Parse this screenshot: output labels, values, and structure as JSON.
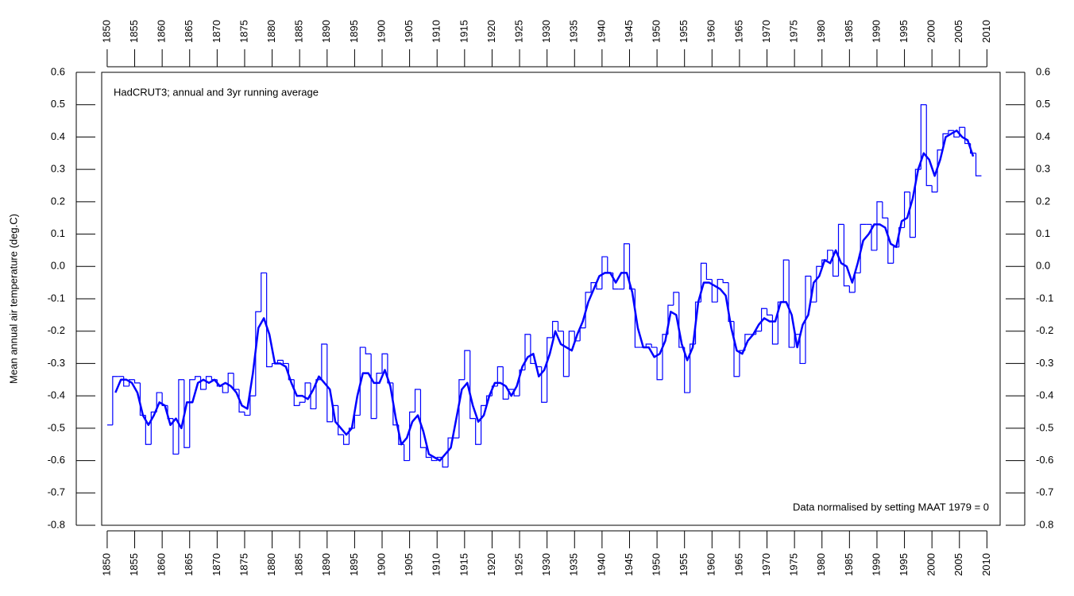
{
  "chart_data": {
    "type": "line",
    "title": "HadCRUT3; annual and 3yr running average",
    "annotation": "Data normalised by setting MAAT 1979 = 0",
    "y_label": "Mean annual air temperature (deg.C)",
    "x": [
      1850,
      1851,
      1852,
      1853,
      1854,
      1855,
      1856,
      1857,
      1858,
      1859,
      1860,
      1861,
      1862,
      1863,
      1864,
      1865,
      1866,
      1867,
      1868,
      1869,
      1870,
      1871,
      1872,
      1873,
      1874,
      1875,
      1876,
      1877,
      1878,
      1879,
      1880,
      1881,
      1882,
      1883,
      1884,
      1885,
      1886,
      1887,
      1888,
      1889,
      1890,
      1891,
      1892,
      1893,
      1894,
      1895,
      1896,
      1897,
      1898,
      1899,
      1900,
      1901,
      1902,
      1903,
      1904,
      1905,
      1906,
      1907,
      1908,
      1909,
      1910,
      1911,
      1912,
      1913,
      1914,
      1915,
      1916,
      1917,
      1918,
      1919,
      1920,
      1921,
      1922,
      1923,
      1924,
      1925,
      1926,
      1927,
      1928,
      1929,
      1930,
      1931,
      1932,
      1933,
      1934,
      1935,
      1936,
      1937,
      1938,
      1939,
      1940,
      1941,
      1942,
      1943,
      1944,
      1945,
      1946,
      1947,
      1948,
      1949,
      1950,
      1951,
      1952,
      1953,
      1954,
      1955,
      1956,
      1957,
      1958,
      1959,
      1960,
      1961,
      1962,
      1963,
      1964,
      1965,
      1966,
      1967,
      1968,
      1969,
      1970,
      1971,
      1972,
      1973,
      1974,
      1975,
      1976,
      1977,
      1978,
      1979,
      1980,
      1981,
      1982,
      1983,
      1984,
      1985,
      1986,
      1987,
      1988,
      1989,
      1990,
      1991,
      1992,
      1993,
      1994,
      1995,
      1996,
      1997,
      1998,
      1999,
      2000,
      2001,
      2002,
      2003,
      2004,
      2005,
      2006,
      2007,
      2008
    ],
    "series": [
      {
        "color": "#0000ff",
        "step": true,
        "values": [
          -0.49,
          -0.34,
          -0.34,
          -0.37,
          -0.35,
          -0.36,
          -0.46,
          -0.55,
          -0.45,
          -0.39,
          -0.43,
          -0.47,
          -0.58,
          -0.35,
          -0.56,
          -0.35,
          -0.34,
          -0.38,
          -0.34,
          -0.35,
          -0.37,
          -0.39,
          -0.33,
          -0.38,
          -0.45,
          -0.46,
          -0.4,
          -0.14,
          -0.02,
          -0.31,
          -0.3,
          -0.29,
          -0.3,
          -0.35,
          -0.43,
          -0.42,
          -0.36,
          -0.44,
          -0.35,
          -0.24,
          -0.48,
          -0.43,
          -0.52,
          -0.55,
          -0.5,
          -0.46,
          -0.25,
          -0.27,
          -0.47,
          -0.33,
          -0.27,
          -0.36,
          -0.49,
          -0.55,
          -0.6,
          -0.45,
          -0.38,
          -0.56,
          -0.59,
          -0.6,
          -0.59,
          -0.62,
          -0.53,
          -0.53,
          -0.35,
          -0.26,
          -0.47,
          -0.55,
          -0.43,
          -0.4,
          -0.37,
          -0.31,
          -0.41,
          -0.38,
          -0.4,
          -0.32,
          -0.21,
          -0.3,
          -0.31,
          -0.42,
          -0.22,
          -0.17,
          -0.2,
          -0.34,
          -0.2,
          -0.23,
          -0.19,
          -0.08,
          -0.05,
          -0.07,
          0.03,
          -0.02,
          -0.07,
          -0.07,
          0.07,
          -0.07,
          -0.25,
          -0.25,
          -0.24,
          -0.25,
          -0.35,
          -0.21,
          -0.12,
          -0.08,
          -0.25,
          -0.39,
          -0.24,
          -0.11,
          0.01,
          -0.04,
          -0.11,
          -0.04,
          -0.05,
          -0.17,
          -0.34,
          -0.26,
          -0.21,
          -0.21,
          -0.2,
          -0.13,
          -0.15,
          -0.24,
          -0.11,
          0.02,
          -0.25,
          -0.21,
          -0.3,
          -0.03,
          -0.11,
          0.0,
          0.02,
          0.05,
          -0.03,
          0.13,
          -0.06,
          -0.08,
          -0.02,
          0.13,
          0.13,
          0.05,
          0.2,
          0.15,
          0.01,
          0.06,
          0.12,
          0.23,
          0.09,
          0.3,
          0.5,
          0.25,
          0.23,
          0.36,
          0.41,
          0.42,
          0.4,
          0.43,
          0.38,
          0.35,
          0.28
        ]
      },
      {
        "color": "#0000ff",
        "step": false,
        "values": [
          null,
          -0.39,
          -0.35,
          -0.35,
          -0.36,
          -0.39,
          -0.46,
          -0.49,
          -0.46,
          -0.42,
          -0.43,
          -0.49,
          -0.47,
          -0.5,
          -0.42,
          -0.42,
          -0.36,
          -0.35,
          -0.36,
          -0.35,
          -0.37,
          -0.36,
          -0.37,
          -0.39,
          -0.43,
          -0.44,
          -0.33,
          -0.19,
          -0.16,
          -0.21,
          -0.3,
          -0.3,
          -0.31,
          -0.36,
          -0.4,
          -0.4,
          -0.41,
          -0.38,
          -0.34,
          -0.36,
          -0.38,
          -0.48,
          -0.5,
          -0.52,
          -0.5,
          -0.4,
          -0.33,
          -0.33,
          -0.36,
          -0.36,
          -0.32,
          -0.37,
          -0.47,
          -0.55,
          -0.53,
          -0.48,
          -0.46,
          -0.51,
          -0.58,
          -0.59,
          -0.6,
          -0.58,
          -0.56,
          -0.47,
          -0.38,
          -0.36,
          -0.43,
          -0.48,
          -0.46,
          -0.4,
          -0.36,
          -0.36,
          -0.37,
          -0.4,
          -0.37,
          -0.31,
          -0.28,
          -0.27,
          -0.34,
          -0.32,
          -0.27,
          -0.2,
          -0.24,
          -0.25,
          -0.26,
          -0.21,
          -0.17,
          -0.11,
          -0.07,
          -0.03,
          -0.02,
          -0.02,
          -0.05,
          -0.02,
          -0.02,
          -0.08,
          -0.19,
          -0.25,
          -0.25,
          -0.28,
          -0.27,
          -0.23,
          -0.14,
          -0.15,
          -0.24,
          -0.29,
          -0.25,
          -0.11,
          -0.05,
          -0.05,
          -0.06,
          -0.07,
          -0.09,
          -0.19,
          -0.26,
          -0.27,
          -0.23,
          -0.21,
          -0.18,
          -0.16,
          -0.17,
          -0.17,
          -0.11,
          -0.11,
          -0.15,
          -0.25,
          -0.18,
          -0.15,
          -0.05,
          -0.03,
          0.02,
          0.01,
          0.05,
          0.01,
          0.0,
          -0.05,
          0.01,
          0.08,
          0.1,
          0.13,
          0.13,
          0.12,
          0.07,
          0.06,
          0.14,
          0.15,
          0.21,
          0.3,
          0.35,
          0.33,
          0.28,
          0.33,
          0.4,
          0.41,
          0.42,
          0.4,
          0.39,
          0.34,
          null
        ]
      }
    ],
    "xlim": [
      1849,
      2012.4
    ],
    "xticks": [
      1850,
      1855,
      1860,
      1865,
      1870,
      1875,
      1880,
      1885,
      1890,
      1895,
      1900,
      1905,
      1910,
      1915,
      1920,
      1925,
      1930,
      1935,
      1940,
      1945,
      1950,
      1955,
      1960,
      1965,
      1970,
      1975,
      1980,
      1985,
      1990,
      1995,
      2000,
      2005,
      2010
    ],
    "ylim": [
      -0.8,
      0.6
    ],
    "yticks": [
      0.6,
      0.5,
      0.4,
      0.3,
      0.2,
      0.1,
      {
        "value": 0,
        "label": "0.0"
      },
      -0.1,
      -0.2,
      -0.3,
      -0.4,
      -0.5,
      -0.6,
      -0.7,
      -0.8
    ]
  }
}
